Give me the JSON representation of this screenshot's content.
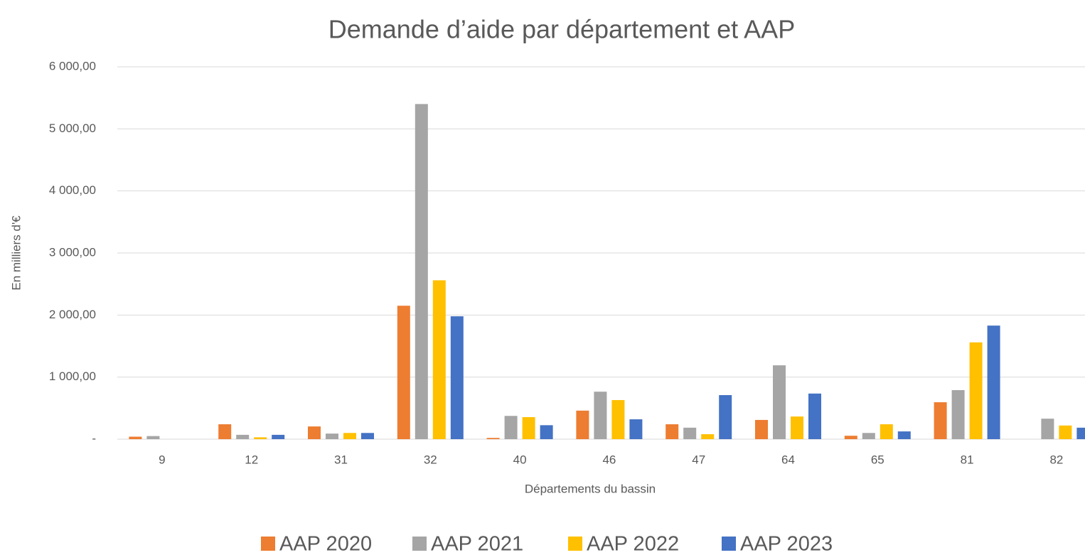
{
  "chart_data": {
    "type": "bar",
    "title": "Demande d’aide par département et AAP",
    "x_label": "Départements du bassin",
    "y_label": "En milliers d'€",
    "categories": [
      "9",
      "12",
      "31",
      "32",
      "40",
      "46",
      "47",
      "64",
      "65",
      "81",
      "82"
    ],
    "series": [
      {
        "name": "AAP 2020",
        "color": "#ed7d31",
        "values": [
          40,
          240,
          205,
          2150,
          20,
          460,
          240,
          310,
          55,
          595,
          0
        ]
      },
      {
        "name": "AAP 2021",
        "color": "#a5a5a5",
        "values": [
          50,
          70,
          90,
          5400,
          375,
          765,
          185,
          1190,
          100,
          790,
          330
        ]
      },
      {
        "name": "AAP 2022",
        "color": "#ffc000",
        "values": [
          0,
          30,
          100,
          2560,
          355,
          630,
          80,
          365,
          240,
          1560,
          220
        ]
      },
      {
        "name": "AAP 2023",
        "color": "#4472c4",
        "values": [
          0,
          70,
          100,
          1980,
          225,
          320,
          710,
          735,
          125,
          1830,
          185
        ]
      }
    ],
    "ylim": [
      0,
      6000
    ],
    "yticks": [
      {
        "value": 0,
        "label": "-"
      },
      {
        "value": 1000,
        "label": "1 000,00"
      },
      {
        "value": 2000,
        "label": "2 000,00"
      },
      {
        "value": 3000,
        "label": "3 000,00"
      },
      {
        "value": 4000,
        "label": "4 000,00"
      },
      {
        "value": 5000,
        "label": "5 000,00"
      },
      {
        "value": 6000,
        "label": "6 000,00"
      }
    ],
    "grid": true,
    "legend": "bottom"
  }
}
